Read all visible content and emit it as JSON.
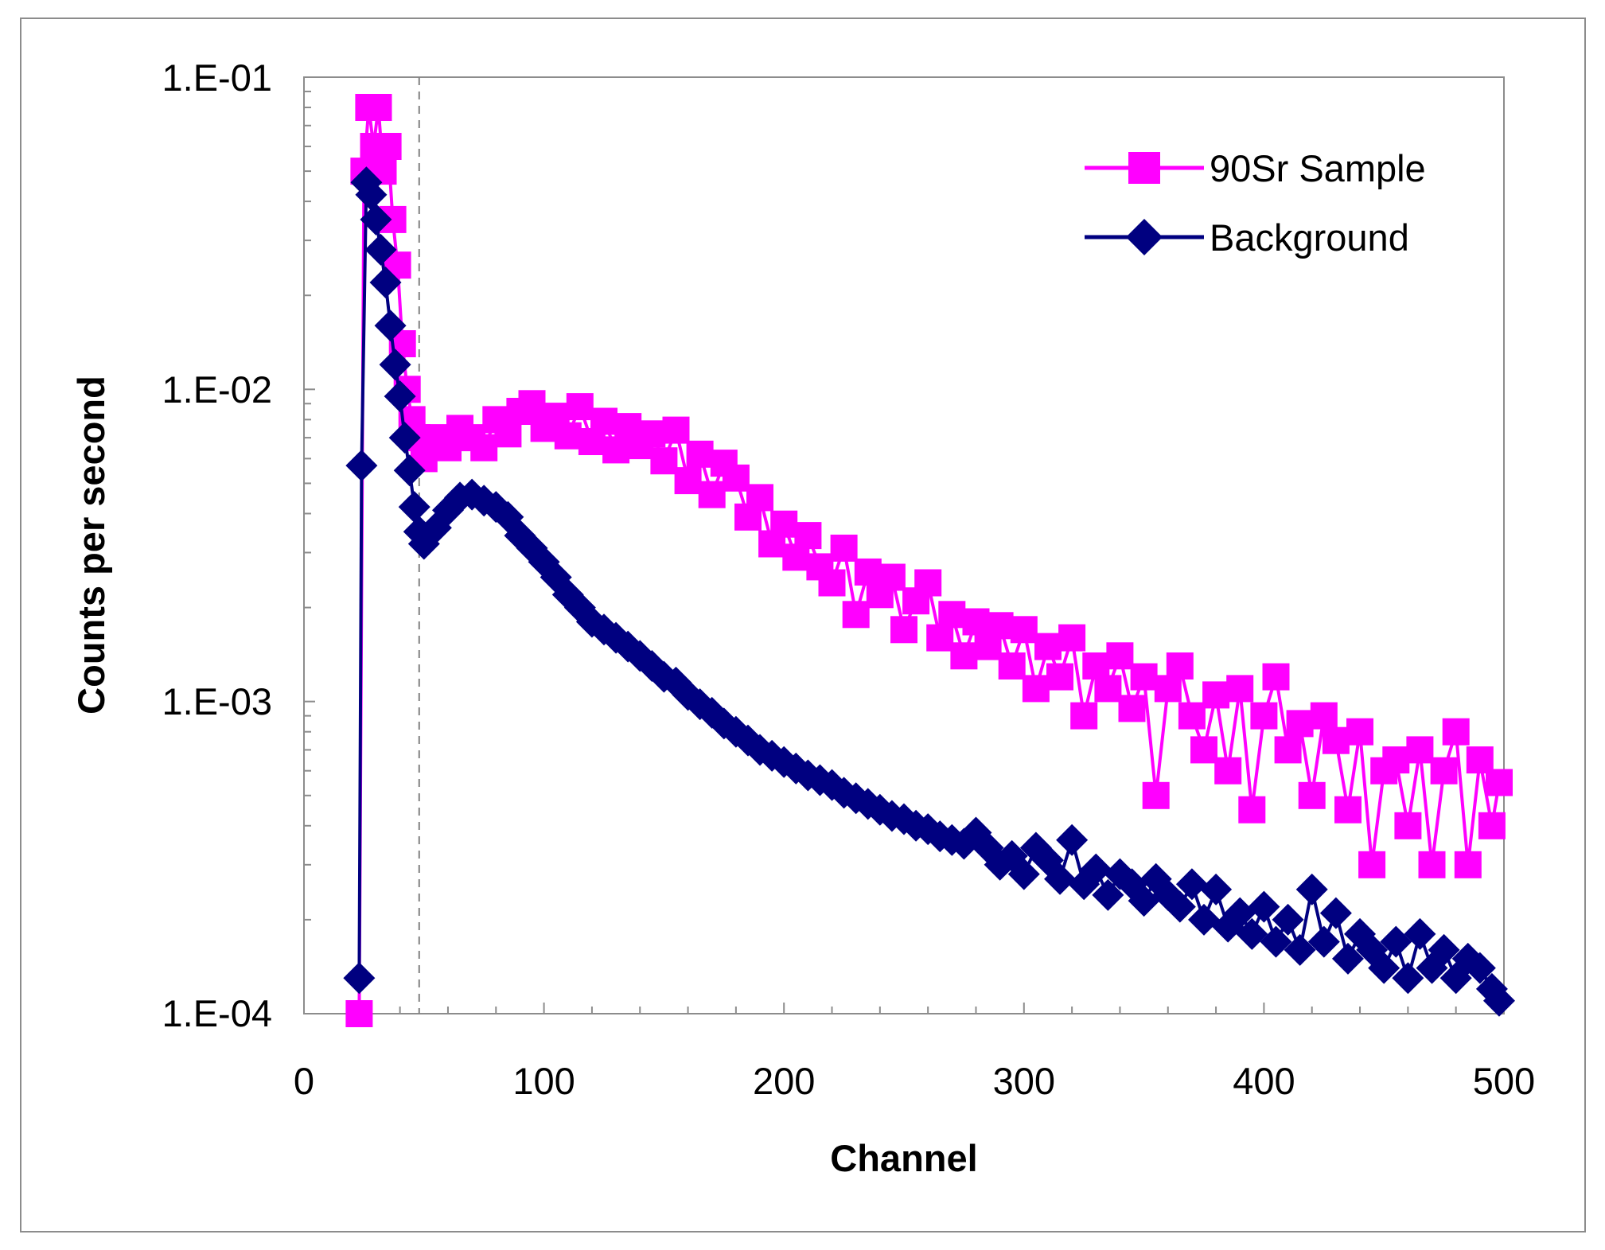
{
  "chart_data": {
    "type": "line",
    "title": "",
    "xlabel": "Channel",
    "ylabel": "Counts per second",
    "xlim": [
      0,
      500
    ],
    "ylim": [
      0.0001,
      0.1
    ],
    "yscale": "log",
    "x_ticks": [
      "0",
      "100",
      "200",
      "300",
      "400",
      "500"
    ],
    "y_ticks": [
      "1.E-01",
      "1.E-02",
      "1.E-03",
      "1.E-04"
    ],
    "reference_line_x": 48,
    "legend_position": "top-right",
    "series": [
      {
        "name": "90Sr Sample",
        "color": "#ff00ff",
        "marker": "square",
        "x": [
          23,
          25,
          27,
          29,
          31,
          33,
          35,
          37,
          39,
          41,
          43,
          45,
          47,
          50,
          55,
          60,
          65,
          70,
          75,
          80,
          85,
          90,
          95,
          100,
          105,
          110,
          115,
          120,
          125,
          130,
          135,
          140,
          145,
          150,
          155,
          160,
          165,
          170,
          175,
          180,
          185,
          190,
          195,
          200,
          205,
          210,
          215,
          220,
          225,
          230,
          235,
          240,
          245,
          250,
          255,
          260,
          265,
          270,
          275,
          280,
          285,
          290,
          295,
          300,
          305,
          310,
          315,
          320,
          325,
          330,
          335,
          340,
          345,
          350,
          355,
          360,
          365,
          370,
          375,
          380,
          385,
          390,
          395,
          400,
          405,
          410,
          415,
          420,
          425,
          430,
          435,
          440,
          445,
          450,
          455,
          460,
          465,
          470,
          475,
          480,
          485,
          490,
          495,
          498
        ],
        "y": [
          0.0001,
          0.05,
          0.08,
          0.06,
          0.08,
          0.05,
          0.06,
          0.035,
          0.025,
          0.014,
          0.01,
          0.008,
          0.007,
          0.006,
          0.007,
          0.0065,
          0.0075,
          0.007,
          0.0065,
          0.008,
          0.0072,
          0.0085,
          0.009,
          0.0075,
          0.0082,
          0.0071,
          0.0088,
          0.0068,
          0.0079,
          0.0064,
          0.0076,
          0.0066,
          0.0072,
          0.0059,
          0.0074,
          0.0051,
          0.0062,
          0.0046,
          0.0058,
          0.0052,
          0.0039,
          0.0045,
          0.0032,
          0.0037,
          0.0029,
          0.0034,
          0.0027,
          0.0024,
          0.0031,
          0.0019,
          0.0026,
          0.0022,
          0.0025,
          0.0017,
          0.0021,
          0.0024,
          0.0016,
          0.0019,
          0.0014,
          0.0018,
          0.0015,
          0.00175,
          0.0013,
          0.0017,
          0.0011,
          0.0015,
          0.0012,
          0.0016,
          0.0009,
          0.0013,
          0.0011,
          0.0014,
          0.00095,
          0.0012,
          0.0005,
          0.0011,
          0.0013,
          0.0009,
          0.0007,
          0.00105,
          0.0006,
          0.0011,
          0.00045,
          0.0009,
          0.0012,
          0.0007,
          0.00085,
          0.0005,
          0.0009,
          0.00075,
          0.00045,
          0.0008,
          0.0003,
          0.0006,
          0.00065,
          0.0004,
          0.0007,
          0.0003,
          0.0006,
          0.0008,
          0.0003,
          0.00065,
          0.0004,
          0.00055
        ]
      },
      {
        "name": "Background",
        "color": "#000080",
        "marker": "diamond",
        "x": [
          23,
          24,
          26,
          28,
          30,
          32,
          34,
          36,
          38,
          40,
          42,
          44,
          46,
          48,
          50,
          55,
          60,
          65,
          70,
          75,
          80,
          85,
          90,
          95,
          100,
          105,
          110,
          115,
          120,
          125,
          130,
          135,
          140,
          145,
          150,
          155,
          160,
          165,
          170,
          175,
          180,
          185,
          190,
          195,
          200,
          205,
          210,
          215,
          220,
          225,
          230,
          235,
          240,
          245,
          250,
          255,
          260,
          265,
          270,
          275,
          280,
          285,
          290,
          295,
          300,
          305,
          310,
          315,
          320,
          325,
          330,
          335,
          340,
          345,
          350,
          355,
          360,
          365,
          370,
          375,
          380,
          385,
          390,
          395,
          400,
          405,
          410,
          415,
          420,
          425,
          430,
          435,
          440,
          445,
          450,
          455,
          460,
          465,
          470,
          475,
          480,
          485,
          490,
          495,
          498
        ],
        "y": [
          0.00013,
          0.0057,
          0.046,
          0.042,
          0.035,
          0.028,
          0.022,
          0.016,
          0.012,
          0.0095,
          0.007,
          0.0055,
          0.0042,
          0.0035,
          0.0032,
          0.0036,
          0.0041,
          0.0045,
          0.0046,
          0.0044,
          0.0042,
          0.0039,
          0.0034,
          0.0031,
          0.0028,
          0.0025,
          0.0022,
          0.002,
          0.0018,
          0.0017,
          0.0016,
          0.0015,
          0.0014,
          0.0013,
          0.0012,
          0.00115,
          0.00105,
          0.00098,
          0.00092,
          0.00085,
          0.0008,
          0.00075,
          0.0007,
          0.00067,
          0.00064,
          0.00061,
          0.00058,
          0.00056,
          0.00054,
          0.00051,
          0.00049,
          0.00047,
          0.00045,
          0.00043,
          0.00042,
          0.0004,
          0.00039,
          0.00037,
          0.00036,
          0.00035,
          0.00038,
          0.00034,
          0.0003,
          0.00032,
          0.00028,
          0.00034,
          0.00031,
          0.00027,
          0.00036,
          0.00026,
          0.00029,
          0.00024,
          0.00028,
          0.00026,
          0.00023,
          0.00027,
          0.00024,
          0.00022,
          0.00026,
          0.0002,
          0.00025,
          0.00019,
          0.00021,
          0.00018,
          0.00022,
          0.00017,
          0.0002,
          0.00016,
          0.00025,
          0.00017,
          0.00021,
          0.00015,
          0.00018,
          0.00016,
          0.00014,
          0.00017,
          0.00013,
          0.00018,
          0.00014,
          0.00016,
          0.00013,
          0.00015,
          0.00014,
          0.00012,
          0.00011
        ]
      }
    ]
  }
}
